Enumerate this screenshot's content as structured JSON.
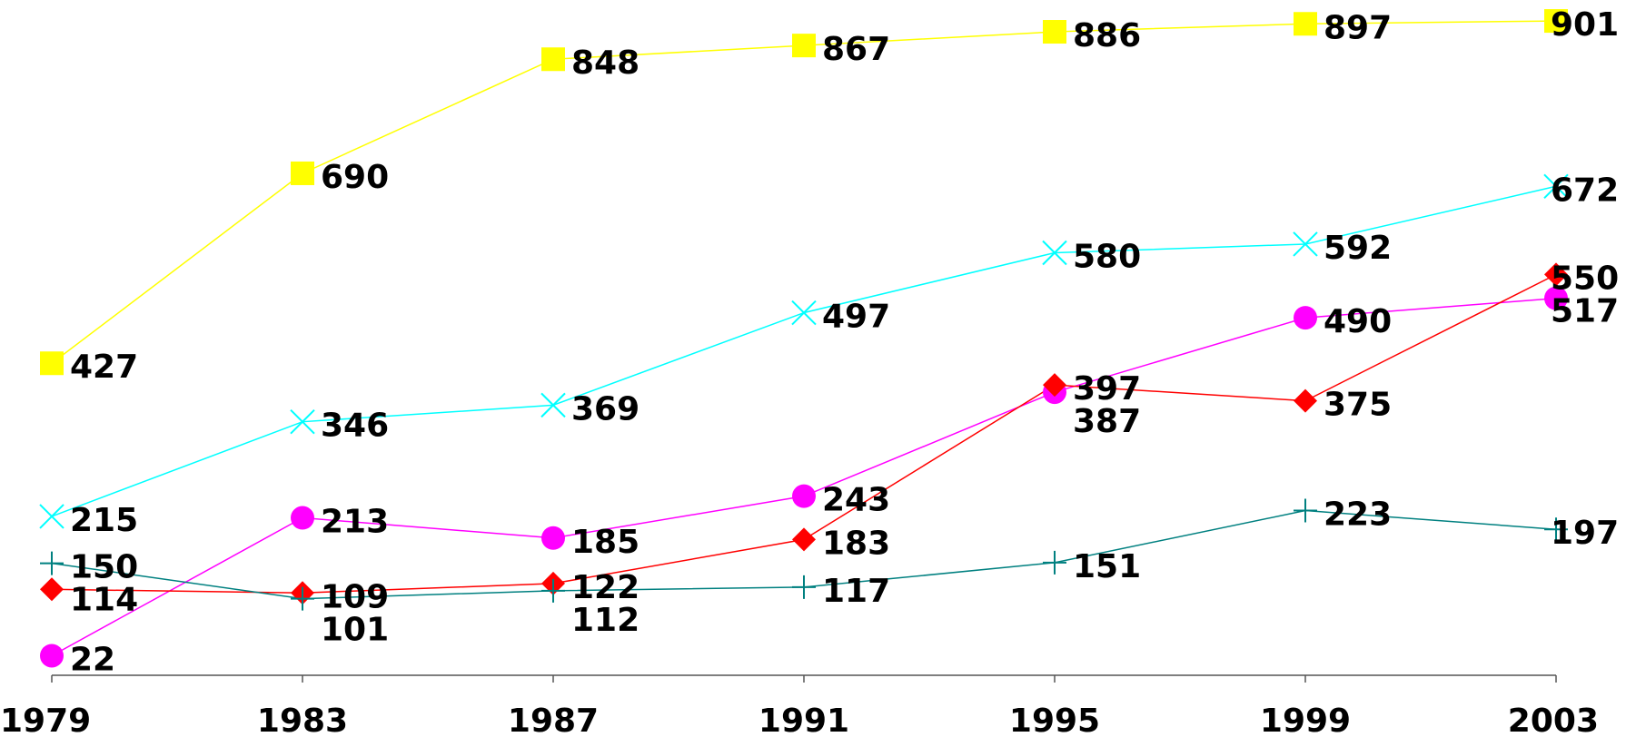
{
  "chart_data": {
    "type": "line",
    "categories": [
      "1979",
      "1983",
      "1987",
      "1991",
      "1995",
      "1999",
      "2003"
    ],
    "ylim": [
      0,
      930
    ],
    "series": [
      {
        "color": "#ffff00",
        "marker": "square",
        "values": [
          427,
          690,
          848,
          867,
          886,
          897,
          901
        ]
      },
      {
        "color": "#00ffff",
        "marker": "x",
        "values": [
          215,
          346,
          369,
          497,
          580,
          592,
          672
        ]
      },
      {
        "color": "#ff00ff",
        "marker": "circle",
        "values": [
          22,
          213,
          185,
          243,
          387,
          490,
          517
        ]
      },
      {
        "color": "#ff0000",
        "marker": "diamond",
        "values": [
          114,
          109,
          122,
          183,
          397,
          375,
          550
        ]
      },
      {
        "color": "#008080",
        "marker": "plus",
        "values": [
          150,
          101,
          112,
          117,
          151,
          223,
          197
        ]
      }
    ]
  }
}
